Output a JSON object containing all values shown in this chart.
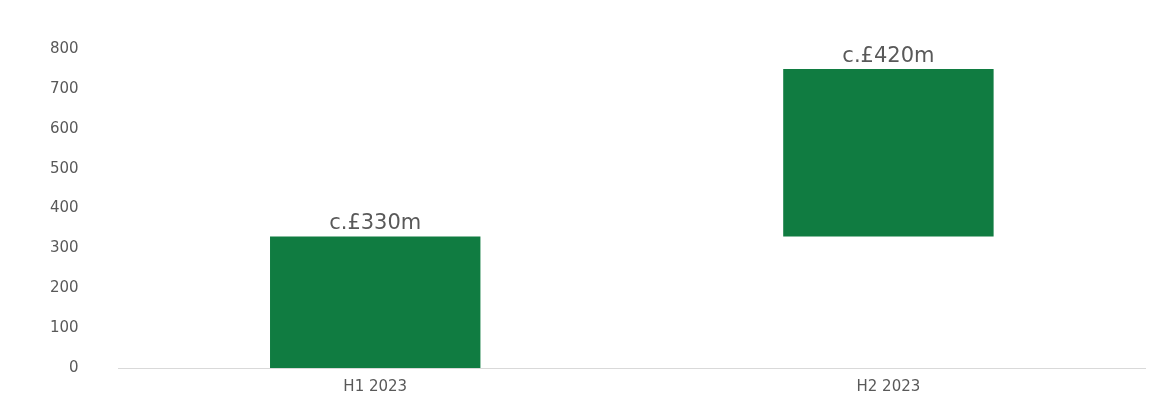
{
  "chart_data": {
    "type": "bar",
    "categories": [
      "H1 2023",
      "H2 2023"
    ],
    "values": [
      330,
      420
    ],
    "base": [
      0,
      330
    ],
    "value_labels": [
      "c.£330m",
      "c.£420m"
    ],
    "color": "#107c41",
    "ylim": [
      0,
      800
    ],
    "yticks": [
      0,
      100,
      200,
      300,
      400,
      500,
      600,
      700,
      800
    ],
    "grid": false,
    "legend": false
  }
}
